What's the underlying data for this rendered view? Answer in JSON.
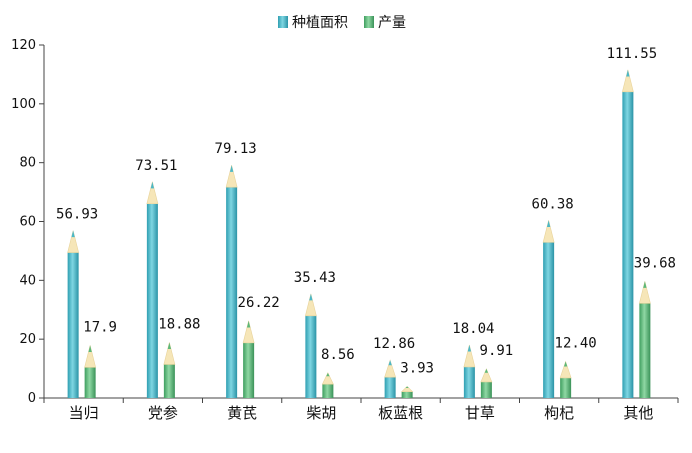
{
  "chart_data": {
    "type": "bar",
    "categories": [
      "当归",
      "党参",
      "黄芪",
      "柴胡",
      "板蓝根",
      "甘草",
      "枸杞",
      "其他"
    ],
    "series": [
      {
        "name": "种植面积",
        "values": [
          56.93,
          73.51,
          79.13,
          35.43,
          12.86,
          18.04,
          60.38,
          111.55
        ],
        "labels": [
          "56.93",
          "73.51",
          "79.13",
          "35.43",
          "12.86",
          "18.04",
          "60.38",
          "111.55"
        ],
        "color": "#4bb8c8"
      },
      {
        "name": "产量",
        "values": [
          17.9,
          18.88,
          26.22,
          8.56,
          3.93,
          9.91,
          12.4,
          39.68
        ],
        "labels": [
          "17.9",
          "18.88",
          "26.22",
          "8.56",
          "3.93",
          "9.91",
          "12.40",
          "39.68"
        ],
        "color": "#5cb87a"
      }
    ],
    "ylim": [
      0,
      120
    ],
    "yticks": [
      "0",
      "20",
      "40",
      "60",
      "80",
      "100",
      "120"
    ],
    "grid": false,
    "legend_position": "top-center",
    "bar_style": "pencil"
  }
}
